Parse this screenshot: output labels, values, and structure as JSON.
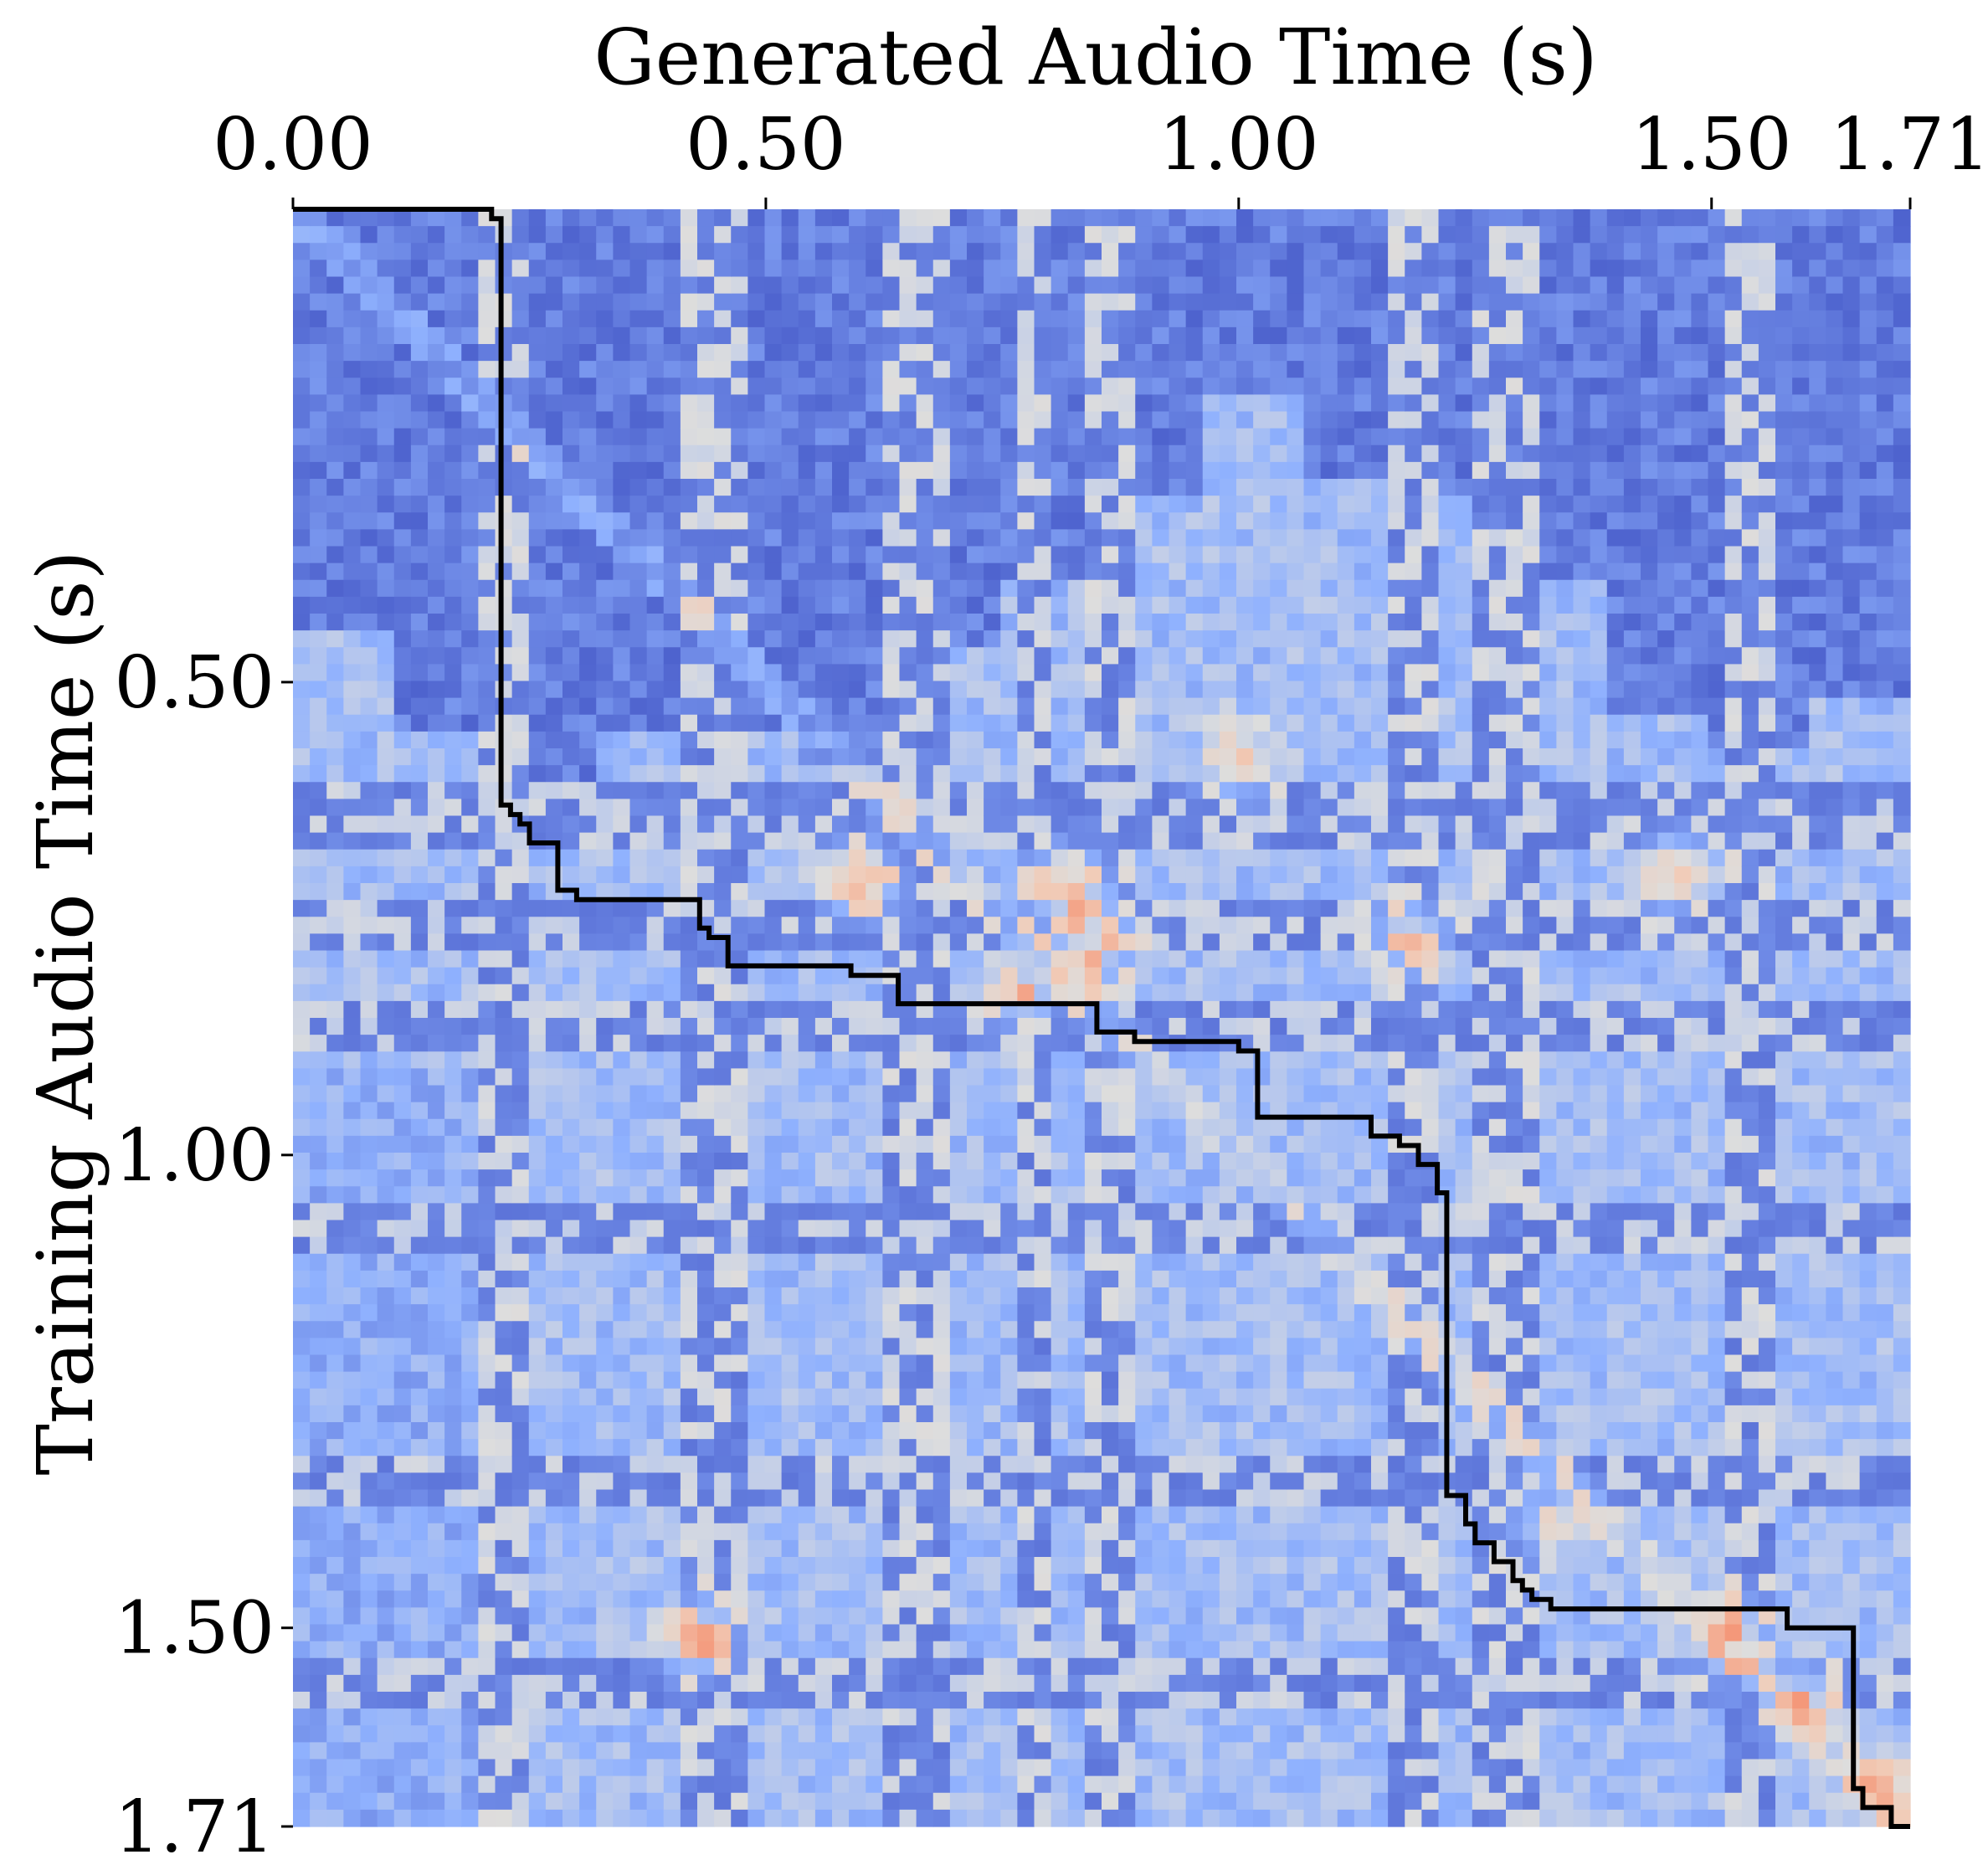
{
  "chart_data": {
    "type": "heatmap",
    "title": "",
    "xlabel": "Generated Audio Time (s)",
    "ylabel": "Training Audio Time (s)",
    "x_axis_position": "top",
    "y_axis_inverted": true,
    "xlim": [
      0,
      1.71
    ],
    "ylim": [
      0,
      1.71
    ],
    "x_ticks": [
      {
        "value": 0.0,
        "label": "0.00"
      },
      {
        "value": 0.5,
        "label": "0.50"
      },
      {
        "value": 1.0,
        "label": "1.00"
      },
      {
        "value": 1.5,
        "label": "1.50"
      },
      {
        "value": 1.71,
        "label": "1.71"
      }
    ],
    "y_ticks": [
      {
        "value": 0.5,
        "label": "0.50"
      },
      {
        "value": 1.0,
        "label": "1.00"
      },
      {
        "value": 1.5,
        "label": "1.50"
      },
      {
        "value": 1.71,
        "label": "1.71"
      }
    ],
    "grid": false,
    "legend": "none",
    "colormap": "coolwarm",
    "colors": {
      "low": "#3b4cc0",
      "mid": "#dddddd",
      "high": "#f4987a",
      "path": "#000000"
    },
    "segment_boundaries_x": [
      0.21,
      0.23,
      0.43,
      0.46,
      0.64,
      0.68,
      0.79,
      0.85,
      0.88,
      1.17,
      1.2,
      1.27,
      1.3,
      1.53,
      1.56
    ],
    "segment_boundaries_y": [
      0.63,
      0.66,
      0.74,
      0.77,
      0.86,
      0.88,
      1.06,
      1.08,
      1.33,
      1.35,
      1.55,
      1.57
    ],
    "dark_region_y_end": [
      0.44,
      0.56,
      0.62,
      0.56,
      0.55,
      0.58,
      0.47,
      0.4,
      0.3,
      0.2,
      0.28,
      0.3,
      0.4,
      0.54,
      0.57,
      0.52
    ],
    "warm_spots": [
      {
        "x": 0.6,
        "y": 0.71,
        "value": 0.9
      },
      {
        "x": 0.82,
        "y": 0.72,
        "value": 0.85
      },
      {
        "x": 0.77,
        "y": 0.82,
        "value": 0.8
      },
      {
        "x": 1.0,
        "y": 0.58,
        "value": 0.75
      },
      {
        "x": 1.46,
        "y": 0.7,
        "value": 0.8
      },
      {
        "x": 0.43,
        "y": 1.51,
        "value": 0.9
      },
      {
        "x": 1.52,
        "y": 1.51,
        "value": 0.95
      },
      {
        "x": 1.68,
        "y": 1.67,
        "value": 0.9
      },
      {
        "x": 1.6,
        "y": 1.58,
        "value": 0.75
      },
      {
        "x": 0.85,
        "y": 0.78,
        "value": 0.85
      },
      {
        "x": 1.18,
        "y": 0.77,
        "value": 0.75
      },
      {
        "x": 1.33,
        "y": 1.39,
        "value": 0.6
      }
    ],
    "alignment_path": [
      [
        0.0,
        0.0
      ],
      [
        0.21,
        0.0
      ],
      [
        0.21,
        0.01
      ],
      [
        0.22,
        0.01
      ],
      [
        0.22,
        0.63
      ],
      [
        0.23,
        0.63
      ],
      [
        0.23,
        0.64
      ],
      [
        0.24,
        0.64
      ],
      [
        0.24,
        0.65
      ],
      [
        0.25,
        0.65
      ],
      [
        0.25,
        0.67
      ],
      [
        0.28,
        0.67
      ],
      [
        0.28,
        0.72
      ],
      [
        0.3,
        0.72
      ],
      [
        0.3,
        0.73
      ],
      [
        0.43,
        0.73
      ],
      [
        0.43,
        0.76
      ],
      [
        0.44,
        0.76
      ],
      [
        0.44,
        0.77
      ],
      [
        0.46,
        0.77
      ],
      [
        0.46,
        0.8
      ],
      [
        0.59,
        0.8
      ],
      [
        0.59,
        0.81
      ],
      [
        0.64,
        0.81
      ],
      [
        0.64,
        0.84
      ],
      [
        0.85,
        0.84
      ],
      [
        0.85,
        0.87
      ],
      [
        0.89,
        0.87
      ],
      [
        0.89,
        0.88
      ],
      [
        1.0,
        0.88
      ],
      [
        1.0,
        0.89
      ],
      [
        1.02,
        0.89
      ],
      [
        1.02,
        0.96
      ],
      [
        1.14,
        0.96
      ],
      [
        1.14,
        0.98
      ],
      [
        1.17,
        0.98
      ],
      [
        1.17,
        0.99
      ],
      [
        1.19,
        0.99
      ],
      [
        1.19,
        1.01
      ],
      [
        1.21,
        1.01
      ],
      [
        1.21,
        1.04
      ],
      [
        1.22,
        1.04
      ],
      [
        1.22,
        1.36
      ],
      [
        1.24,
        1.36
      ],
      [
        1.24,
        1.39
      ],
      [
        1.25,
        1.39
      ],
      [
        1.25,
        1.41
      ],
      [
        1.27,
        1.41
      ],
      [
        1.27,
        1.43
      ],
      [
        1.29,
        1.43
      ],
      [
        1.29,
        1.45
      ],
      [
        1.3,
        1.45
      ],
      [
        1.3,
        1.46
      ],
      [
        1.31,
        1.46
      ],
      [
        1.31,
        1.47
      ],
      [
        1.33,
        1.47
      ],
      [
        1.33,
        1.48
      ],
      [
        1.58,
        1.48
      ],
      [
        1.58,
        1.5
      ],
      [
        1.65,
        1.5
      ],
      [
        1.65,
        1.67
      ],
      [
        1.66,
        1.67
      ],
      [
        1.66,
        1.69
      ],
      [
        1.69,
        1.69
      ],
      [
        1.69,
        1.71
      ],
      [
        1.71,
        1.71
      ]
    ]
  }
}
